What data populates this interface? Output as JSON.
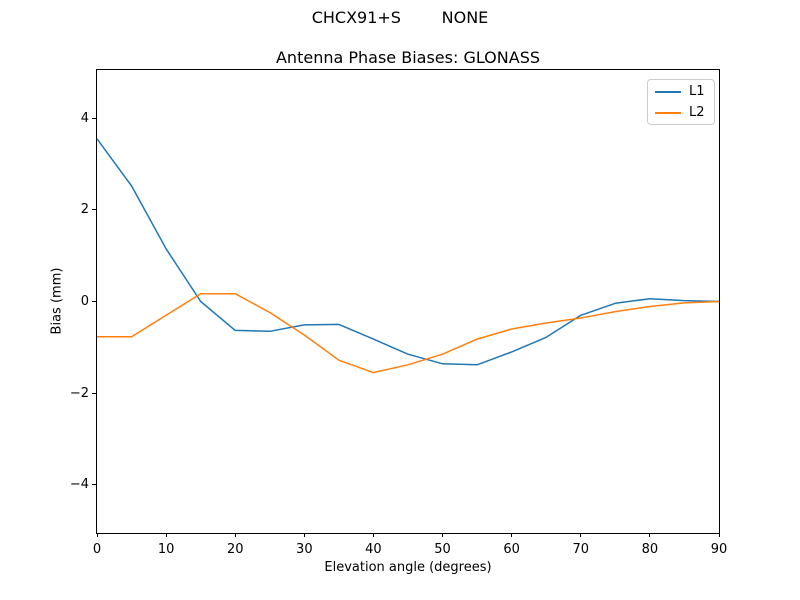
{
  "figure": {
    "suptitle": "CHCX91+S        NONE",
    "background": "#ffffff",
    "axis_color": "#000000"
  },
  "chart_data": {
    "type": "line",
    "title": "Antenna Phase Biases: GLONASS",
    "xlabel": "Elevation angle (degrees)",
    "ylabel": "Bias (mm)",
    "xlim": [
      0,
      90
    ],
    "ylim": [
      -5.05,
      5.05
    ],
    "x_ticks": [
      0,
      10,
      20,
      30,
      40,
      50,
      60,
      70,
      80,
      90
    ],
    "y_ticks": [
      -4,
      -2,
      0,
      2,
      4
    ],
    "grid": false,
    "legend": {
      "position": "upper right",
      "entries": [
        "L1",
        "L2"
      ]
    },
    "x": [
      0,
      5,
      10,
      15,
      20,
      25,
      30,
      35,
      40,
      45,
      50,
      55,
      60,
      65,
      70,
      75,
      80,
      85,
      90
    ],
    "series": [
      {
        "name": "L1",
        "color": "#1f77b4",
        "values": [
          3.55,
          2.52,
          1.15,
          0.0,
          -0.63,
          -0.65,
          -0.51,
          -0.5,
          -0.82,
          -1.15,
          -1.36,
          -1.38,
          -1.1,
          -0.78,
          -0.3,
          -0.04,
          0.06,
          0.02,
          0.0
        ]
      },
      {
        "name": "L2",
        "color": "#ff7f0e",
        "values": [
          -0.77,
          -0.77,
          -0.3,
          0.17,
          0.17,
          -0.24,
          -0.73,
          -1.28,
          -1.55,
          -1.38,
          -1.15,
          -0.82,
          -0.6,
          -0.47,
          -0.36,
          -0.22,
          -0.11,
          -0.03,
          0.0
        ]
      }
    ]
  }
}
